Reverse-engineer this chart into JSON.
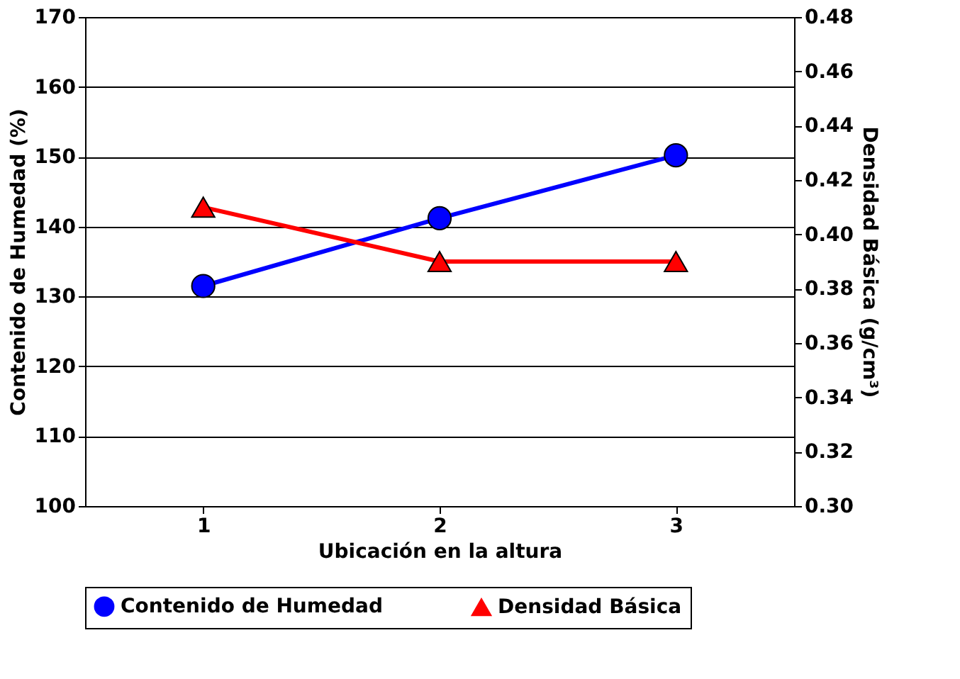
{
  "chart_data": {
    "type": "line",
    "xlabel": "Ubicación en la altura",
    "ylabel": "Contenido de Humedad (%)",
    "y2label": "Densidad Básica (g/cm³)",
    "categories": [
      "1",
      "2",
      "3"
    ],
    "series": [
      {
        "name": "Contenido de Humedad",
        "color": "#0000ff",
        "marker": "circle",
        "values": [
          131.5,
          141.2,
          150.2
        ]
      },
      {
        "name": "Densidad Básica",
        "color": "#ff0000",
        "marker": "triangle",
        "axis": "y2",
        "values": [
          0.41,
          0.39,
          0.39
        ]
      }
    ],
    "ylim": [
      100,
      170
    ],
    "yticks": [
      100,
      110,
      120,
      130,
      140,
      150,
      160,
      170
    ],
    "y2lim": [
      0.3,
      0.48
    ],
    "y2ticks": [
      {
        "value": 0.3,
        "label": "0.30"
      },
      {
        "value": 0.32,
        "label": "0.32"
      },
      {
        "value": 0.34,
        "label": "0.34"
      },
      {
        "value": 0.36,
        "label": "0.36"
      },
      {
        "value": 0.38,
        "label": "0.38"
      },
      {
        "value": 0.4,
        "label": "0.40"
      },
      {
        "value": 0.42,
        "label": "0.42"
      },
      {
        "value": 0.44,
        "label": "0.44"
      },
      {
        "value": 0.46,
        "label": "0.46"
      },
      {
        "value": 0.48,
        "label": "0.48"
      }
    ],
    "grid": "y",
    "legend": "bottom",
    "line_style": "solid"
  }
}
